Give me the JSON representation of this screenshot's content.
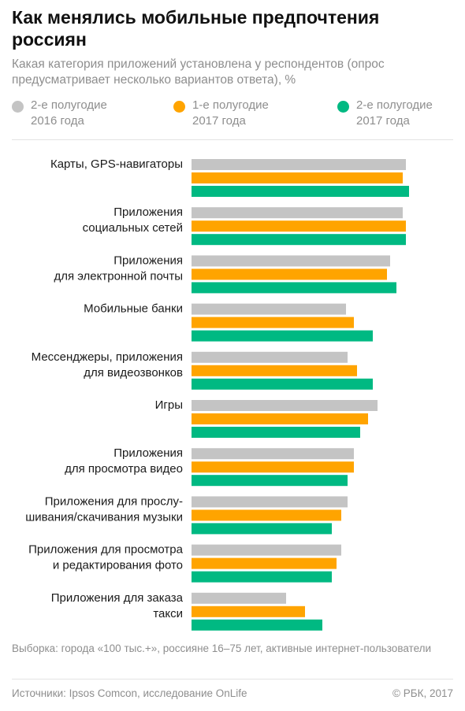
{
  "title": "Как менялись мобильные предпочтения россиян",
  "subtitle": "Какая категория приложений установлена у респондентов (опрос предусматривает несколько вариантов ответа), %",
  "note": "Выборка: города «100 тыс.+», россияне 16–75 лет, активные интернет-пользователи",
  "source": "Источники: Ipsos Comcon, исследование OnLife",
  "copyright": "© РБК, 2017",
  "chart_data": {
    "type": "bar",
    "orientation": "horizontal",
    "categories": [
      "Карты, GPS-навигаторы",
      "Приложения\nсоциальных сетей",
      "Приложения\nдля электронной почты",
      "Мобильные банки",
      "Мессенджеры, приложения\nдля видеозвонков",
      "Игры",
      "Приложения\nдля просмотра видео",
      "Приложения для прослу-\nшивания/скачивания музыки",
      "Приложения для просмотра\nи редактирования фото",
      "Приложения для заказа\nтакси"
    ],
    "series": [
      {
        "name": "2-е полугодие\n2016 года",
        "color": "#c4c4c4",
        "values": [
          68,
          67,
          63,
          49,
          49.5,
          59,
          51.5,
          49.5,
          47.5,
          30
        ]
      },
      {
        "name": "1-е полугодие\n2017 года",
        "color": "#ffa400",
        "values": [
          67,
          68,
          62,
          51.5,
          52.5,
          56,
          51.5,
          47.5,
          46,
          36
        ]
      },
      {
        "name": "2-е полугодие\n2017 года",
        "color": "#00b982",
        "values": [
          69,
          68,
          65,
          57.5,
          57.5,
          53.5,
          49.5,
          44.5,
          44.5,
          41.5
        ]
      }
    ],
    "xlim": [
      0,
      85
    ],
    "grid": false,
    "legend": "top"
  }
}
